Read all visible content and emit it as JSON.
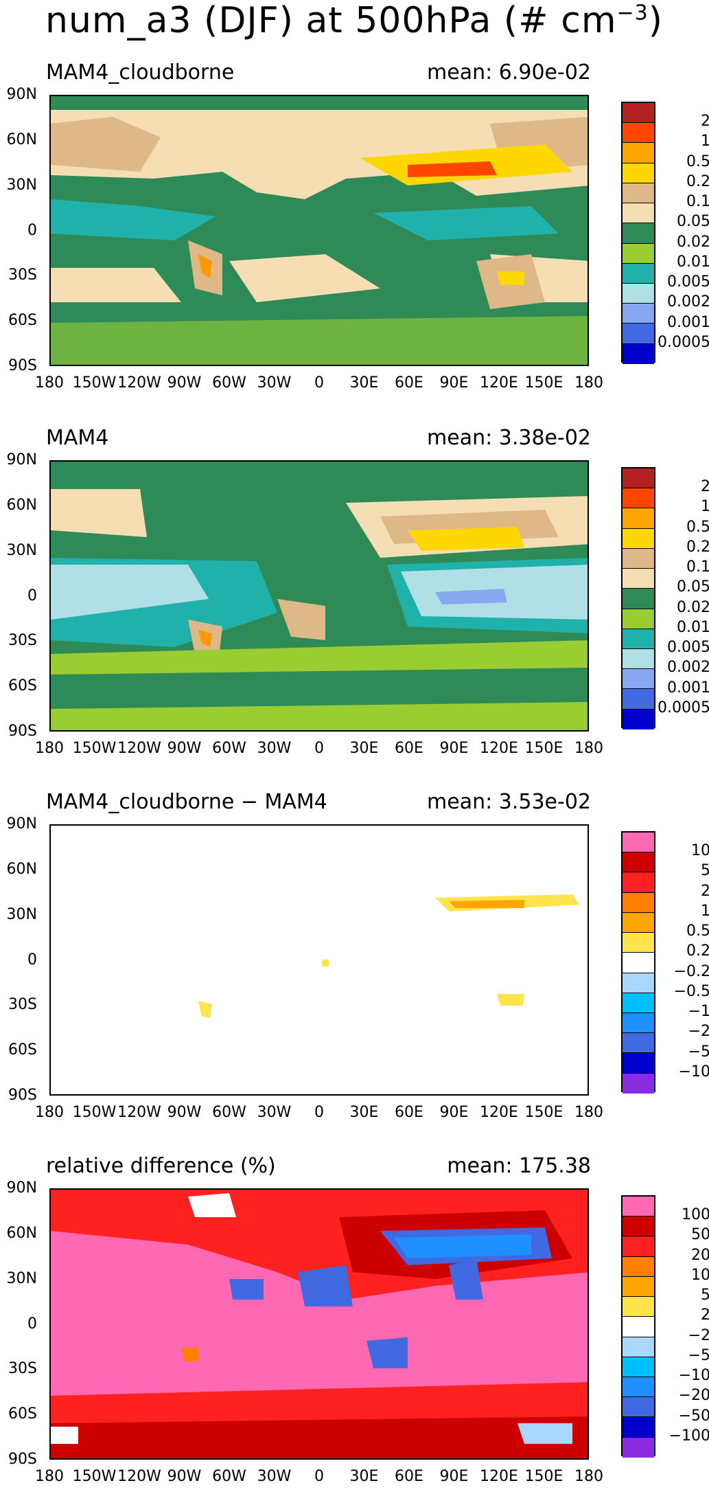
{
  "figure": {
    "title_main": "num_a3 (DJF) at 500hPa (# cm",
    "title_exp": "−3",
    "title_close": ")"
  },
  "axes": {
    "lat_labels": [
      "90N",
      "60N",
      "30N",
      "0",
      "30S",
      "60S",
      "90S"
    ],
    "lon_labels": [
      "180",
      "150W",
      "120W",
      "90W",
      "60W",
      "30W",
      "0",
      "30E",
      "60E",
      "90E",
      "120E",
      "150E",
      "180"
    ]
  },
  "panels": [
    {
      "title": "MAM4_cloudborne",
      "mean": "mean: 6.90e-02",
      "colorbar": {
        "colors": [
          "#b22222",
          "#ff4500",
          "#ffa500",
          "#ffd700",
          "#deb887",
          "#f5deb3",
          "#2e8b57",
          "#9acd32",
          "#20b2aa",
          "#b0e0e6",
          "#87a8f0",
          "#4169e1",
          "#0000cd"
        ],
        "labels": [
          "2",
          "1",
          "0.5",
          "0.2",
          "0.1",
          "0.05",
          "0.02",
          "0.01",
          "0.005",
          "0.002",
          "0.001",
          "0.0005"
        ]
      }
    },
    {
      "title": "MAM4",
      "mean": "mean: 3.38e-02",
      "colorbar": {
        "colors": [
          "#b22222",
          "#ff4500",
          "#ffa500",
          "#ffd700",
          "#deb887",
          "#f5deb3",
          "#2e8b57",
          "#9acd32",
          "#20b2aa",
          "#b0e0e6",
          "#87a8f0",
          "#4169e1",
          "#0000cd"
        ],
        "labels": [
          "2",
          "1",
          "0.5",
          "0.2",
          "0.1",
          "0.05",
          "0.02",
          "0.01",
          "0.005",
          "0.002",
          "0.001",
          "0.0005"
        ]
      }
    },
    {
      "title": "MAM4_cloudborne − MAM4",
      "mean": "mean: 3.53e-02",
      "colorbar": {
        "colors": [
          "#ff69b4",
          "#cc0000",
          "#ff2020",
          "#ff7f00",
          "#ffa500",
          "#ffe44d",
          "#ffffff",
          "#a8d8ff",
          "#00bfff",
          "#1e90ff",
          "#4169e1",
          "#0000cd",
          "#8a2be2"
        ],
        "labels": [
          "10",
          "5",
          "2",
          "1",
          "0.5",
          "0.2",
          "−0.2",
          "−0.5",
          "−1",
          "−2",
          "−5",
          "−10"
        ]
      }
    },
    {
      "title": "relative difference (%)",
      "mean": "mean: 175.38",
      "colorbar": {
        "colors": [
          "#ff69b4",
          "#cc0000",
          "#ff2020",
          "#ff7f00",
          "#ffa500",
          "#ffe44d",
          "#ffffff",
          "#a8d8ff",
          "#00bfff",
          "#1e90ff",
          "#4169e1",
          "#0000cd",
          "#8a2be2"
        ],
        "labels": [
          "100",
          "50",
          "20",
          "10",
          "5",
          "2",
          "−2",
          "−5",
          "−10",
          "−20",
          "−50",
          "−100"
        ]
      }
    }
  ]
}
